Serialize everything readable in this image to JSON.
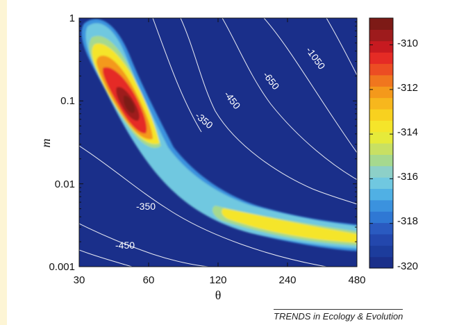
{
  "chart_data": {
    "type": "heatmap",
    "xlabel": "θ",
    "ylabel": "m",
    "x_scale": "log",
    "y_scale": "log",
    "xlim": [
      30,
      480
    ],
    "ylim": [
      0.001,
      1
    ],
    "x_ticks": [
      "30",
      "60",
      "120",
      "240",
      "480"
    ],
    "y_ticks": [
      "0.001",
      "0.01",
      "0.1",
      "1"
    ],
    "colorbar": {
      "range": [
        -320,
        -308.8
      ],
      "ticks": [
        "-310",
        "-312",
        "-314",
        "-316",
        "-318",
        "-320"
      ],
      "colors": [
        "#1a2f8a",
        "#1c3c9c",
        "#2347ad",
        "#2a5ac0",
        "#2f78d4",
        "#3b92de",
        "#50b0e4",
        "#70c8e0",
        "#8dd0c8",
        "#a6d98e",
        "#c8e063",
        "#e6ea3a",
        "#f5e52a",
        "#f8d11f",
        "#f7b71d",
        "#f4991b",
        "#f0761e",
        "#ec4d23",
        "#e52b25",
        "#c71a20",
        "#9e1b1c",
        "#7d1a16"
      ]
    },
    "peak": {
      "theta": 46,
      "m": 0.09,
      "value": -308.8
    },
    "ridge": [
      {
        "theta": 33,
        "m": 0.6,
        "value": -316
      },
      {
        "theta": 38,
        "m": 0.3,
        "value": -312
      },
      {
        "theta": 46,
        "m": 0.09,
        "value": -308.8
      },
      {
        "theta": 56,
        "m": 0.04,
        "value": -311
      },
      {
        "theta": 75,
        "m": 0.014,
        "value": -315
      },
      {
        "theta": 100,
        "m": 0.0065,
        "value": -316
      },
      {
        "theta": 140,
        "m": 0.0045,
        "value": -315.5
      },
      {
        "theta": 200,
        "m": 0.0036,
        "value": -313.5
      },
      {
        "theta": 280,
        "m": 0.0029,
        "value": -313
      },
      {
        "theta": 400,
        "m": 0.0023,
        "value": -313.5
      },
      {
        "theta": 480,
        "m": 0.0021,
        "value": -314
      }
    ],
    "contour_labels": [
      "-1050",
      "-650",
      "-450",
      "-350",
      "-350",
      "-450"
    ],
    "background_value": -320
  },
  "credit": "TRENDS in Ecology & Evolution"
}
